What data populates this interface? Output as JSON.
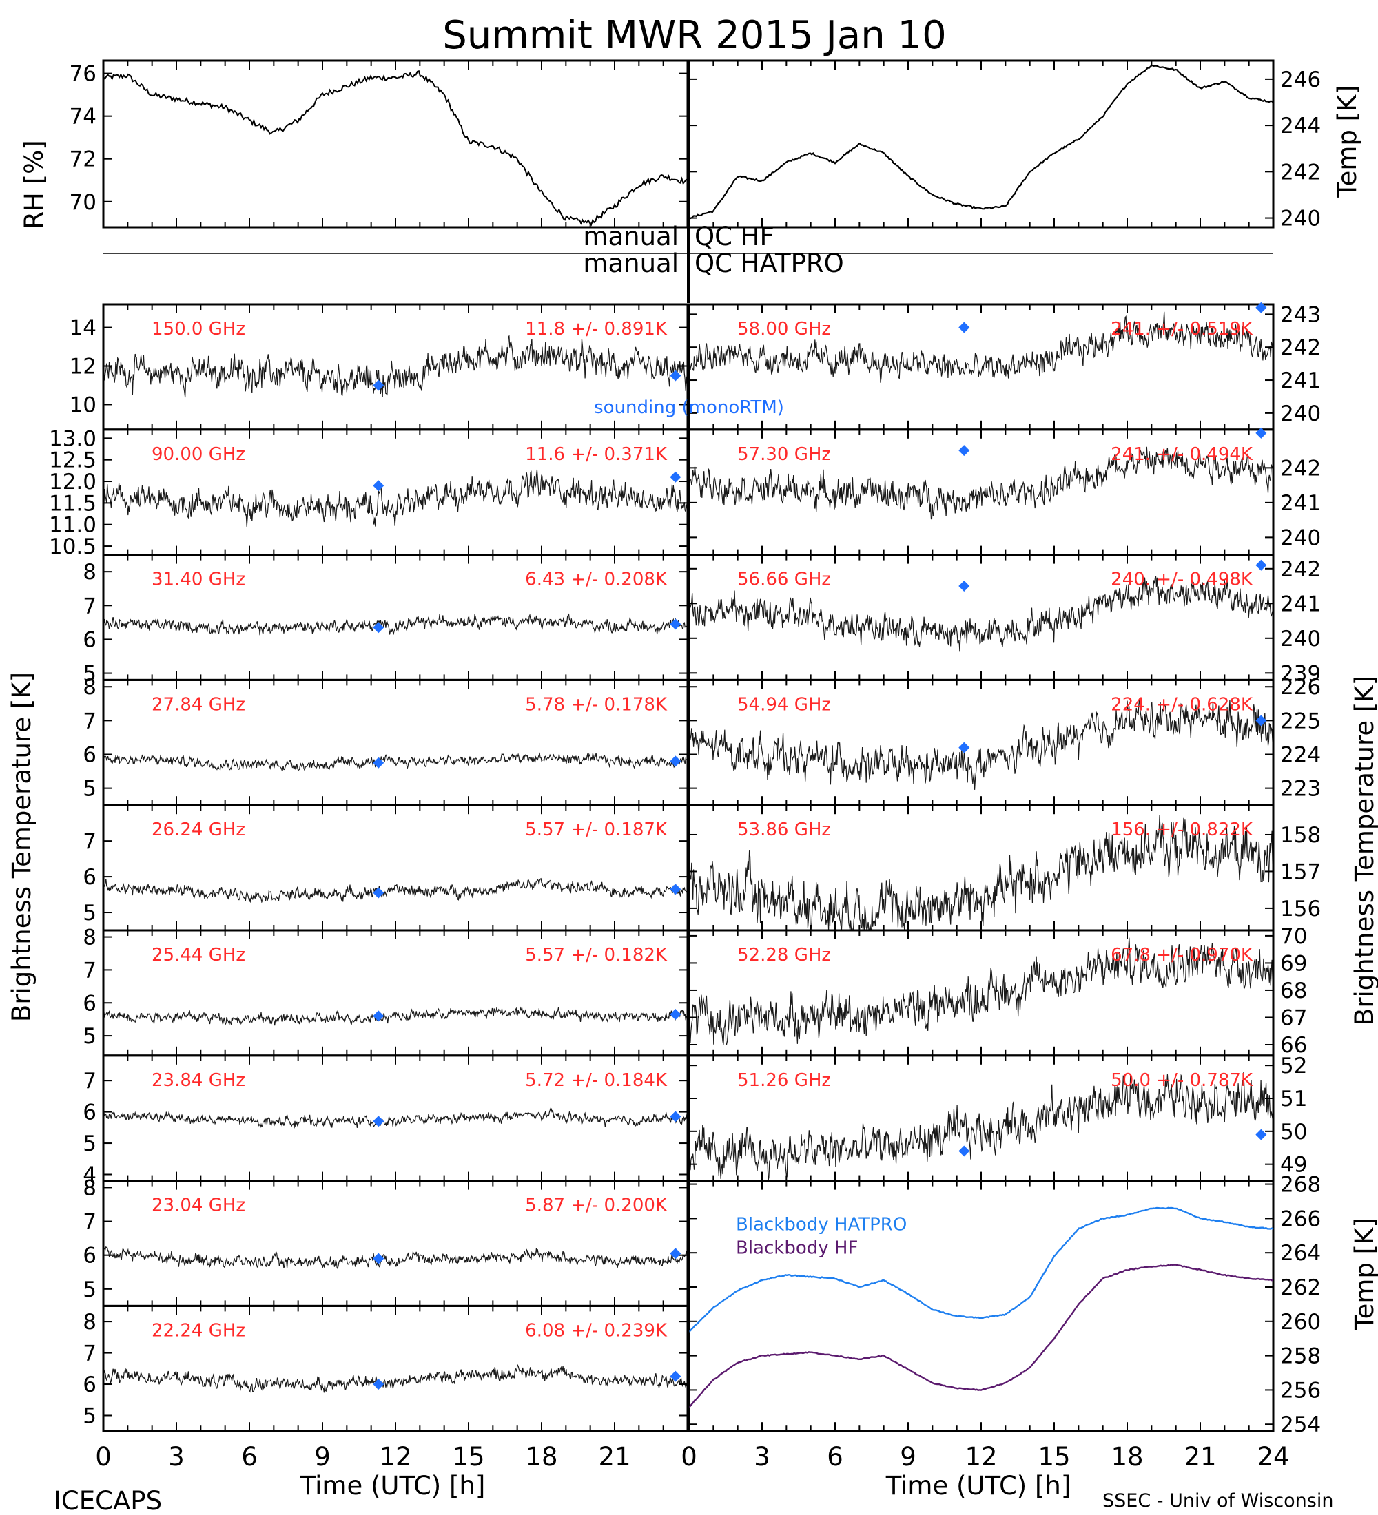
{
  "title": "Summit MWR 2015 Jan 10",
  "labels": {
    "left_axis": "Brightness Temperature [K]",
    "right_axis": "Brightness Temperature [K]",
    "rh_axis": "RH [%]",
    "temp_axis": "Temp [K]",
    "bb_temp_axis": "Temp [K]",
    "xlabel_left": "Time (UTC) [h]",
    "xlabel_right": "Time (UTC) [h]",
    "footer_left": "ICECAPS",
    "footer_right": "SSEC - Univ of Wisconsin",
    "qc_left_1": "manual",
    "qc_right_1": "QC HF",
    "qc_left_2": "manual",
    "qc_right_2": "QC HATPRO",
    "sounding_legend": "sounding (monoRTM)"
  },
  "colors": {
    "trace": "#000000",
    "sounding": "#1f6fff",
    "channel_text": "#ff2a2a",
    "bb_hatpro": "#1e7ff0",
    "bb_hf": "#5b1a6e"
  },
  "x_ticks": [
    0,
    3,
    6,
    9,
    12,
    15,
    18,
    21,
    24
  ],
  "chart_data": [
    {
      "type": "line",
      "panel": "rh",
      "ylabel": "RH [%]",
      "ylim": [
        68.8,
        76.6
      ],
      "yticks": [
        "70",
        "72",
        "74",
        "76"
      ],
      "ytick_values": [
        70,
        72,
        74,
        76
      ],
      "x": [
        0,
        1,
        2,
        3,
        4,
        5,
        6,
        7,
        8,
        9,
        10,
        11,
        12,
        13,
        14,
        15,
        16,
        17,
        18,
        19,
        20,
        21,
        22,
        23,
        24
      ],
      "series": [
        {
          "values": [
            75.8,
            75.9,
            75.0,
            74.8,
            74.6,
            74.4,
            73.8,
            73.2,
            73.8,
            75.0,
            75.4,
            75.8,
            75.8,
            76.0,
            75.0,
            72.8,
            72.6,
            72.0,
            70.4,
            69.2,
            69.0,
            69.8,
            70.8,
            71.2,
            70.9
          ]
        }
      ]
    },
    {
      "type": "line",
      "panel": "temp",
      "ylabel": "Temp [K]",
      "ylim": [
        239.6,
        246.8
      ],
      "yticks": [
        "240",
        "242",
        "244",
        "246"
      ],
      "ytick_values": [
        240,
        242,
        244,
        246
      ],
      "x": [
        0,
        1,
        2,
        3,
        4,
        5,
        6,
        7,
        8,
        9,
        10,
        11,
        12,
        13,
        14,
        15,
        16,
        17,
        18,
        19,
        20,
        21,
        22,
        23,
        24
      ],
      "series": [
        {
          "values": [
            240.0,
            240.3,
            241.8,
            241.6,
            242.4,
            242.8,
            242.4,
            243.2,
            242.8,
            241.8,
            241.0,
            240.6,
            240.4,
            240.5,
            242.0,
            242.8,
            243.4,
            244.4,
            245.8,
            246.6,
            246.4,
            245.6,
            245.9,
            245.2,
            245.0
          ]
        }
      ]
    },
    {
      "type": "line",
      "panel": "left",
      "channel": "150.0 GHz",
      "stat": "11.8 +/- 0.891K",
      "ylim": [
        8.7,
        15.2
      ],
      "yticks": [
        "10",
        "12",
        "14"
      ],
      "ytick_values": [
        10,
        12,
        14
      ],
      "x": [
        0,
        3,
        6,
        9,
        12,
        15,
        18,
        21,
        24
      ],
      "values": [
        11.8,
        11.6,
        11.7,
        11.4,
        11.2,
        12.5,
        12.6,
        12.0,
        11.5
      ],
      "noise": 0.9,
      "sounding": [
        {
          "x": 11.3,
          "y": 11.0
        },
        {
          "x": 23.5,
          "y": 11.5
        }
      ]
    },
    {
      "type": "line",
      "panel": "left",
      "channel": "90.00 GHz",
      "stat": "11.6 +/- 0.371K",
      "ylim": [
        10.3,
        13.2
      ],
      "yticks": [
        "10.5",
        "11.0",
        "11.5",
        "12.0",
        "12.5",
        "13.0"
      ],
      "ytick_values": [
        10.5,
        11.0,
        11.5,
        12.0,
        12.5,
        13.0
      ],
      "x": [
        0,
        3,
        6,
        9,
        12,
        15,
        18,
        21,
        24
      ],
      "values": [
        11.6,
        11.5,
        11.5,
        11.4,
        11.4,
        11.8,
        11.9,
        11.6,
        11.6
      ],
      "noise": 0.37,
      "sounding": [
        {
          "x": 11.3,
          "y": 11.9
        },
        {
          "x": 23.5,
          "y": 12.1
        }
      ]
    },
    {
      "type": "line",
      "panel": "left",
      "channel": "31.40 GHz",
      "stat": "6.43 +/- 0.208K",
      "ylim": [
        4.8,
        8.5
      ],
      "yticks": [
        "5",
        "6",
        "7",
        "8"
      ],
      "ytick_values": [
        5,
        6,
        7,
        8
      ],
      "x": [
        0,
        3,
        6,
        9,
        12,
        15,
        18,
        21,
        24
      ],
      "values": [
        6.5,
        6.4,
        6.3,
        6.4,
        6.4,
        6.6,
        6.5,
        6.4,
        6.4
      ],
      "noise": 0.21,
      "sounding": [
        {
          "x": 11.3,
          "y": 6.35
        },
        {
          "x": 23.5,
          "y": 6.45
        }
      ]
    },
    {
      "type": "line",
      "panel": "left",
      "channel": "27.84 GHz",
      "stat": "5.78 +/- 0.178K",
      "ylim": [
        4.5,
        8.2
      ],
      "yticks": [
        "5",
        "6",
        "7",
        "8"
      ],
      "ytick_values": [
        5,
        6,
        7,
        8
      ],
      "x": [
        0,
        3,
        6,
        9,
        12,
        15,
        18,
        21,
        24
      ],
      "values": [
        5.9,
        5.8,
        5.7,
        5.7,
        5.8,
        5.8,
        5.9,
        5.8,
        5.8
      ],
      "noise": 0.18,
      "sounding": [
        {
          "x": 11.3,
          "y": 5.75
        },
        {
          "x": 23.5,
          "y": 5.8
        }
      ]
    },
    {
      "type": "line",
      "panel": "left",
      "channel": "26.24 GHz",
      "stat": "5.57 +/- 0.187K",
      "ylim": [
        4.5,
        8.0
      ],
      "yticks": [
        "5",
        "6",
        "7"
      ],
      "ytick_values": [
        5,
        6,
        7
      ],
      "x": [
        0,
        3,
        6,
        9,
        12,
        15,
        18,
        21,
        24
      ],
      "values": [
        5.7,
        5.6,
        5.5,
        5.5,
        5.6,
        5.6,
        5.8,
        5.6,
        5.6
      ],
      "noise": 0.19,
      "sounding": [
        {
          "x": 11.3,
          "y": 5.55
        },
        {
          "x": 23.5,
          "y": 5.65
        }
      ]
    },
    {
      "type": "line",
      "panel": "left",
      "channel": "25.44 GHz",
      "stat": "5.57 +/- 0.182K",
      "ylim": [
        4.4,
        8.2
      ],
      "yticks": [
        "5",
        "6",
        "7",
        "8"
      ],
      "ytick_values": [
        5,
        6,
        7,
        8
      ],
      "x": [
        0,
        3,
        6,
        9,
        12,
        15,
        18,
        21,
        24
      ],
      "values": [
        5.6,
        5.6,
        5.5,
        5.5,
        5.6,
        5.7,
        5.7,
        5.6,
        5.6
      ],
      "noise": 0.18,
      "sounding": [
        {
          "x": 11.3,
          "y": 5.6
        },
        {
          "x": 23.5,
          "y": 5.65
        }
      ]
    },
    {
      "type": "line",
      "panel": "left",
      "channel": "23.84 GHz",
      "stat": "5.72 +/- 0.184K",
      "ylim": [
        3.8,
        7.8
      ],
      "yticks": [
        "4",
        "5",
        "6",
        "7"
      ],
      "ytick_values": [
        4,
        5,
        6,
        7
      ],
      "x": [
        0,
        3,
        6,
        9,
        12,
        15,
        18,
        21,
        24
      ],
      "values": [
        5.9,
        5.8,
        5.7,
        5.7,
        5.7,
        5.8,
        5.9,
        5.7,
        5.8
      ],
      "noise": 0.18,
      "sounding": [
        {
          "x": 11.3,
          "y": 5.7
        },
        {
          "x": 23.5,
          "y": 5.85
        }
      ]
    },
    {
      "type": "line",
      "panel": "left",
      "channel": "23.04 GHz",
      "stat": "5.87 +/- 0.200K",
      "ylim": [
        4.5,
        8.2
      ],
      "yticks": [
        "5",
        "6",
        "7",
        "8"
      ],
      "ytick_values": [
        5,
        6,
        7,
        8
      ],
      "x": [
        0,
        3,
        6,
        9,
        12,
        15,
        18,
        21,
        24
      ],
      "values": [
        6.1,
        5.9,
        5.8,
        5.8,
        5.9,
        5.9,
        6.0,
        5.8,
        5.9
      ],
      "noise": 0.2,
      "sounding": [
        {
          "x": 11.3,
          "y": 5.9
        },
        {
          "x": 23.5,
          "y": 6.05
        }
      ]
    },
    {
      "type": "line",
      "panel": "left",
      "channel": "22.24 GHz",
      "stat": "6.08 +/- 0.239K",
      "ylim": [
        4.5,
        8.5
      ],
      "yticks": [
        "5",
        "6",
        "7",
        "8"
      ],
      "ytick_values": [
        5,
        6,
        7,
        8
      ],
      "x": [
        0,
        3,
        6,
        9,
        12,
        15,
        18,
        21,
        24
      ],
      "values": [
        6.3,
        6.2,
        6.0,
        6.0,
        6.1,
        6.3,
        6.4,
        6.1,
        6.1
      ],
      "noise": 0.24,
      "sounding": [
        {
          "x": 11.3,
          "y": 6.0
        },
        {
          "x": 23.5,
          "y": 6.25
        }
      ]
    },
    {
      "type": "line",
      "panel": "right",
      "channel": "58.00 GHz",
      "stat": "241. +/- 0.519K",
      "ylim": [
        239.5,
        243.3
      ],
      "yticks": [
        "240",
        "241",
        "242",
        "243"
      ],
      "ytick_values": [
        240,
        241,
        242,
        243
      ],
      "x": [
        0,
        3,
        6,
        9,
        12,
        15,
        18,
        21,
        24
      ],
      "values": [
        241.8,
        241.7,
        241.6,
        241.5,
        241.3,
        241.6,
        242.5,
        242.4,
        242.0
      ],
      "noise": 0.5,
      "sounding": [
        {
          "x": 11.3,
          "y": 242.6
        },
        {
          "x": 23.5,
          "y": 243.2
        }
      ]
    },
    {
      "type": "line",
      "panel": "right",
      "channel": "57.30 GHz",
      "stat": "241. +/- 0.494K",
      "ylim": [
        239.5,
        243.1
      ],
      "yticks": [
        "240",
        "241",
        "242"
      ],
      "ytick_values": [
        240,
        241,
        242
      ],
      "x": [
        0,
        3,
        6,
        9,
        12,
        15,
        18,
        21,
        24
      ],
      "values": [
        241.6,
        241.4,
        241.3,
        241.2,
        241.1,
        241.4,
        242.2,
        242.2,
        241.8
      ],
      "noise": 0.5,
      "sounding": [
        {
          "x": 11.3,
          "y": 242.5
        },
        {
          "x": 23.5,
          "y": 243.0
        }
      ]
    },
    {
      "type": "line",
      "panel": "right",
      "channel": "56.66 GHz",
      "stat": "240. +/- 0.498K",
      "ylim": [
        238.8,
        242.4
      ],
      "yticks": [
        "239",
        "240",
        "241",
        "242"
      ],
      "ytick_values": [
        239,
        240,
        241,
        242
      ],
      "x": [
        0,
        3,
        6,
        9,
        12,
        15,
        18,
        21,
        24
      ],
      "values": [
        240.9,
        240.7,
        240.5,
        240.2,
        240.1,
        240.5,
        241.3,
        241.3,
        240.9
      ],
      "noise": 0.5,
      "sounding": [
        {
          "x": 11.3,
          "y": 241.5
        },
        {
          "x": 23.5,
          "y": 242.1
        }
      ]
    },
    {
      "type": "line",
      "panel": "right",
      "channel": "54.94 GHz",
      "stat": "224. +/- 0.628K",
      "ylim": [
        222.5,
        226.2
      ],
      "yticks": [
        "223",
        "224",
        "225",
        "226"
      ],
      "ytick_values": [
        223,
        224,
        225,
        226
      ],
      "x": [
        0,
        3,
        6,
        9,
        12,
        15,
        18,
        21,
        24
      ],
      "values": [
        224.3,
        224.0,
        223.8,
        223.6,
        223.7,
        224.3,
        225.0,
        225.1,
        224.8
      ],
      "noise": 0.6,
      "sounding": [
        {
          "x": 11.3,
          "y": 224.2
        },
        {
          "x": 23.5,
          "y": 225.0
        }
      ]
    },
    {
      "type": "line",
      "panel": "right",
      "channel": "53.86 GHz",
      "stat": "156. +/- 0.822K",
      "ylim": [
        155.4,
        158.8
      ],
      "yticks": [
        "156",
        "157",
        "158"
      ],
      "ytick_values": [
        156,
        157,
        158
      ],
      "x": [
        0,
        3,
        6,
        9,
        12,
        15,
        18,
        21,
        24
      ],
      "values": [
        156.7,
        156.3,
        156.0,
        156.0,
        156.3,
        157.0,
        157.6,
        157.7,
        157.3
      ],
      "noise": 0.8,
      "sounding": []
    },
    {
      "type": "line",
      "panel": "right",
      "channel": "52.28 GHz",
      "stat": "67.8 +/- 0.970K",
      "ylim": [
        65.6,
        70.2
      ],
      "yticks": [
        "66",
        "67",
        "68",
        "69",
        "70"
      ],
      "ytick_values": [
        66,
        67,
        68,
        69,
        70
      ],
      "x": [
        0,
        3,
        6,
        9,
        12,
        15,
        18,
        21,
        24
      ],
      "values": [
        66.8,
        67.0,
        67.1,
        67.3,
        67.8,
        68.4,
        69.0,
        69.1,
        68.8
      ],
      "noise": 0.9,
      "sounding": []
    },
    {
      "type": "line",
      "panel": "right",
      "channel": "51.26 GHz",
      "stat": "50.0 +/- 0.787K",
      "ylim": [
        48.5,
        52.3
      ],
      "yticks": [
        "49",
        "50",
        "51",
        "52"
      ],
      "ytick_values": [
        49,
        50,
        51,
        52
      ],
      "x": [
        0,
        3,
        6,
        9,
        12,
        15,
        18,
        21,
        24
      ],
      "values": [
        49.3,
        49.3,
        49.4,
        49.6,
        50.0,
        50.5,
        51.0,
        51.1,
        50.8
      ],
      "noise": 0.75,
      "sounding": [
        {
          "x": 11.3,
          "y": 49.4
        },
        {
          "x": 23.5,
          "y": 49.9
        }
      ]
    },
    {
      "type": "line",
      "panel": "blackbody",
      "ylabel": "Temp [K]",
      "ylim": [
        253.6,
        268.2
      ],
      "yticks": [
        "254",
        "256",
        "258",
        "260",
        "262",
        "264",
        "266",
        "268"
      ],
      "ytick_values": [
        254,
        256,
        258,
        260,
        262,
        264,
        266,
        268
      ],
      "x": [
        0,
        1,
        2,
        3,
        4,
        5,
        6,
        7,
        8,
        9,
        10,
        11,
        12,
        13,
        14,
        15,
        16,
        17,
        18,
        19,
        20,
        21,
        22,
        23,
        24
      ],
      "series": [
        {
          "name": "Blackbody HATPRO",
          "values": [
            259.4,
            260.8,
            261.8,
            262.4,
            262.7,
            262.6,
            262.5,
            262.0,
            262.4,
            261.6,
            260.7,
            260.3,
            260.2,
            260.4,
            261.4,
            263.8,
            265.4,
            266.0,
            266.2,
            266.6,
            266.6,
            266.0,
            265.8,
            265.5,
            265.4
          ]
        },
        {
          "name": "Blackbody HF",
          "values": [
            255.0,
            256.6,
            257.6,
            258.0,
            258.1,
            258.2,
            258.0,
            257.8,
            258.0,
            257.2,
            256.4,
            256.1,
            256.0,
            256.4,
            257.3,
            259.0,
            261.0,
            262.5,
            263.0,
            263.2,
            263.3,
            263.0,
            262.7,
            262.5,
            262.4
          ]
        }
      ]
    }
  ]
}
